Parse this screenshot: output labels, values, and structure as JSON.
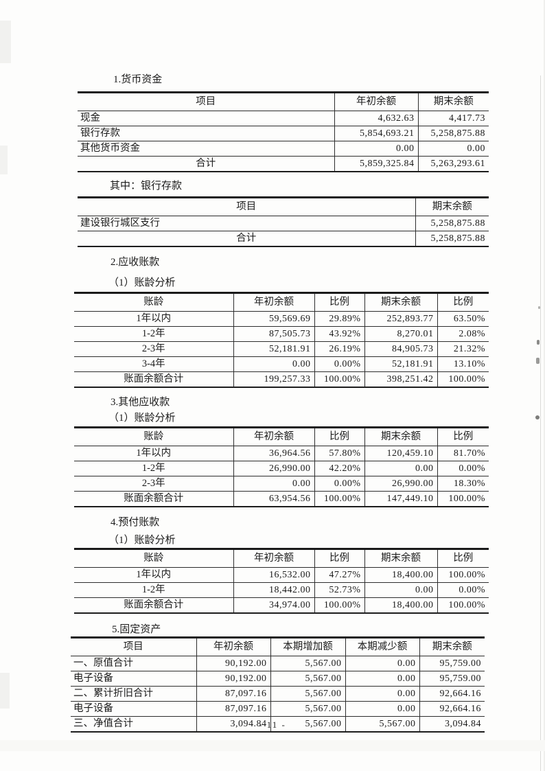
{
  "page": {
    "number": "- 11 -"
  },
  "sections": [
    {
      "id": "monetary-funds",
      "heading": "1.货币资金",
      "table": {
        "columns": [
          "项目",
          "年初余额",
          "期末余额"
        ],
        "rows": [
          {
            "label": "现金",
            "align": "left",
            "values": [
              "4,632.63",
              "4,417.73"
            ]
          },
          {
            "label": "银行存款",
            "align": "left",
            "values": [
              "5,854,693.21",
              "5,258,875.88"
            ]
          },
          {
            "label": "其他货币资金",
            "align": "left",
            "values": [
              "0.00",
              "0.00"
            ]
          },
          {
            "label": "合计",
            "align": "center",
            "values": [
              "5,859,325.84",
              "5,263,293.61"
            ]
          }
        ]
      }
    },
    {
      "id": "bank-deposits",
      "heading": "其中：银行存款",
      "table": {
        "columns": [
          "项目",
          "期末余额"
        ],
        "rows": [
          {
            "label": "建设银行城区支行",
            "align": "left",
            "values": [
              "5,258,875.88"
            ]
          },
          {
            "label": "合计",
            "align": "center",
            "values": [
              "5,258,875.88"
            ]
          }
        ]
      }
    },
    {
      "id": "accounts-receivable",
      "heading": "2.应收账款",
      "subheading": "（1）账龄分析",
      "table": {
        "columns": [
          "账龄",
          "年初余额",
          "比例",
          "期末余额",
          "比例"
        ],
        "rows": [
          {
            "label": "1年以内",
            "align": "center",
            "values": [
              "59,569.69",
              "29.89%",
              "252,893.77",
              "63.50%"
            ]
          },
          {
            "label": "1-2年",
            "align": "center",
            "values": [
              "87,505.73",
              "43.92%",
              "8,270.01",
              "2.08%"
            ]
          },
          {
            "label": "2-3年",
            "align": "center",
            "values": [
              "52,181.91",
              "26.19%",
              "84,905.73",
              "21.32%"
            ]
          },
          {
            "label": "3-4年",
            "align": "center",
            "values": [
              "0.00",
              "0.00%",
              "52,181.91",
              "13.10%"
            ]
          },
          {
            "label": "账面余额合计",
            "align": "center",
            "values": [
              "199,257.33",
              "100.00%",
              "398,251.42",
              "100.00%"
            ]
          }
        ]
      }
    },
    {
      "id": "other-receivables",
      "heading": "3.其他应收款",
      "subheading": "（1）账龄分析",
      "table": {
        "columns": [
          "账龄",
          "年初余额",
          "比例",
          "期末余额",
          "比例"
        ],
        "rows": [
          {
            "label": "1年以内",
            "align": "center",
            "values": [
              "36,964.56",
              "57.80%",
              "120,459.10",
              "81.70%"
            ]
          },
          {
            "label": "1-2年",
            "align": "center",
            "values": [
              "26,990.00",
              "42.20%",
              "0.00",
              "0.00%"
            ]
          },
          {
            "label": "2-3年",
            "align": "center",
            "values": [
              "0.00",
              "0.00%",
              "26,990.00",
              "18.30%"
            ]
          },
          {
            "label": "账面余额合计",
            "align": "center",
            "values": [
              "63,954.56",
              "100.00%",
              "147,449.10",
              "100.00%"
            ]
          }
        ]
      }
    },
    {
      "id": "prepayments",
      "heading": "4.预付账款",
      "subheading": "（1）账龄分析",
      "table": {
        "columns": [
          "账龄",
          "年初余额",
          "比例",
          "期末余额",
          "比例"
        ],
        "rows": [
          {
            "label": "1年以内",
            "align": "center",
            "values": [
              "16,532.00",
              "47.27%",
              "18,400.00",
              "100.00%"
            ]
          },
          {
            "label": "1-2年",
            "align": "center",
            "values": [
              "18,442.00",
              "52.73%",
              "0.00",
              "0.00%"
            ]
          },
          {
            "label": "账面余额合计",
            "align": "center",
            "values": [
              "34,974.00",
              "100.00%",
              "18,400.00",
              "100.00%"
            ]
          }
        ]
      }
    },
    {
      "id": "fixed-assets",
      "heading": "5.固定资产",
      "table": {
        "columns": [
          "项目",
          "年初余额",
          "本期增加额",
          "本期减少额",
          "期末余额"
        ],
        "rows": [
          {
            "label": "一、原值合计",
            "align": "left",
            "values": [
              "90,192.00",
              "5,567.00",
              "0.00",
              "95,759.00"
            ]
          },
          {
            "label": "电子设备",
            "align": "left",
            "values": [
              "90,192.00",
              "5,567.00",
              "0.00",
              "95,759.00"
            ]
          },
          {
            "label": "二、累计折旧合计",
            "align": "left",
            "values": [
              "87,097.16",
              "5,567.00",
              "0.00",
              "92,664.16"
            ]
          },
          {
            "label": "电子设备",
            "align": "left",
            "values": [
              "87,097.16",
              "5,567.00",
              "0.00",
              "92,664.16"
            ]
          },
          {
            "label": "三、净值合计",
            "align": "left",
            "values": [
              "3,094.84",
              "5,567.00",
              "5,567.00",
              "3,094.84"
            ]
          }
        ]
      }
    }
  ]
}
